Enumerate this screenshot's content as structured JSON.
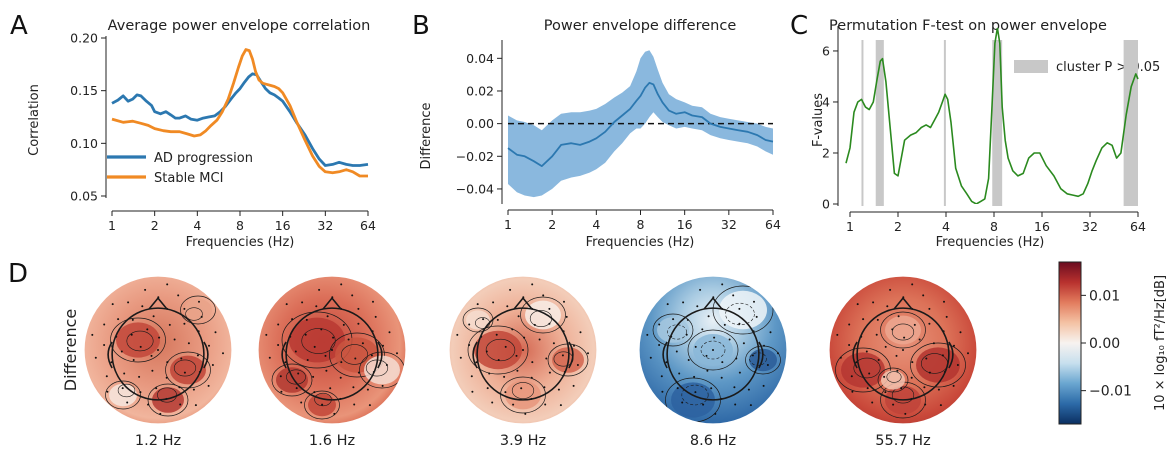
{
  "panels": {
    "A": "A",
    "B": "B",
    "C": "C",
    "D": "D"
  },
  "chart_data": [
    {
      "id": "A",
      "type": "line",
      "title": "Average power envelope correlation",
      "xlabel": "Frequencies (Hz)",
      "ylabel": "Correlation",
      "xscale": "log2",
      "xlim": [
        1,
        64
      ],
      "ylim": [
        0.05,
        0.2
      ],
      "xticks": [
        1,
        2,
        4,
        8,
        16,
        32,
        64
      ],
      "yticks": [
        0.05,
        0.1,
        0.15,
        0.2
      ],
      "ytick_labels": [
        "0.05",
        "0.10",
        "0.15",
        "0.20"
      ],
      "legend_position": "lower-left",
      "series": [
        {
          "name": "AD progression",
          "color": "#2c78b0",
          "x": [
            1,
            1.1,
            1.2,
            1.3,
            1.4,
            1.5,
            1.6,
            1.75,
            1.9,
            2.0,
            2.2,
            2.4,
            2.6,
            2.8,
            3.0,
            3.3,
            3.6,
            4.0,
            4.4,
            4.8,
            5.3,
            5.8,
            6.3,
            6.9,
            7.5,
            8.0,
            8.6,
            9.2,
            9.8,
            10.5,
            11.3,
            12.1,
            13.0,
            14.0,
            15.0,
            16.0,
            18,
            20,
            23,
            26,
            29,
            32,
            36,
            40,
            45,
            50,
            56,
            64
          ],
          "y": [
            0.138,
            0.141,
            0.145,
            0.14,
            0.142,
            0.146,
            0.145,
            0.14,
            0.136,
            0.13,
            0.128,
            0.13,
            0.127,
            0.124,
            0.124,
            0.126,
            0.123,
            0.122,
            0.124,
            0.125,
            0.126,
            0.13,
            0.135,
            0.142,
            0.148,
            0.152,
            0.158,
            0.163,
            0.166,
            0.165,
            0.158,
            0.152,
            0.148,
            0.146,
            0.143,
            0.14,
            0.13,
            0.12,
            0.108,
            0.095,
            0.085,
            0.079,
            0.08,
            0.082,
            0.08,
            0.079,
            0.079,
            0.08
          ]
        },
        {
          "name": "Stable MCI",
          "color": "#f08a24",
          "x": [
            1,
            1.2,
            1.4,
            1.6,
            1.8,
            2.0,
            2.3,
            2.6,
            3.0,
            3.4,
            3.8,
            4.2,
            4.6,
            5.0,
            5.5,
            6.0,
            6.6,
            7.2,
            7.8,
            8.3,
            8.8,
            9.3,
            9.8,
            10.3,
            10.9,
            11.6,
            12.3,
            13.1,
            14.0,
            15.0,
            16.0,
            18,
            20,
            23,
            26,
            29,
            32,
            36,
            40,
            45,
            50,
            56,
            64
          ],
          "y": [
            0.123,
            0.12,
            0.121,
            0.119,
            0.117,
            0.114,
            0.112,
            0.111,
            0.111,
            0.109,
            0.107,
            0.108,
            0.112,
            0.117,
            0.122,
            0.13,
            0.142,
            0.157,
            0.172,
            0.183,
            0.189,
            0.188,
            0.18,
            0.168,
            0.16,
            0.157,
            0.156,
            0.155,
            0.154,
            0.152,
            0.148,
            0.136,
            0.121,
            0.103,
            0.088,
            0.078,
            0.073,
            0.072,
            0.073,
            0.075,
            0.073,
            0.069,
            0.069
          ]
        }
      ]
    },
    {
      "id": "B",
      "type": "line",
      "title": "Power envelope difference",
      "xlabel": "Frequencies (Hz)",
      "ylabel": "Difference",
      "xscale": "log2",
      "xlim": [
        1,
        64
      ],
      "ylim": [
        -0.048,
        0.05
      ],
      "xticks": [
        1,
        2,
        4,
        8,
        16,
        32,
        64
      ],
      "yticks": [
        -0.04,
        -0.02,
        0.0,
        0.02,
        0.04
      ],
      "ytick_labels": [
        "−0.04",
        "−0.02",
        "0.00",
        "0.02",
        "0.04"
      ],
      "reference_line": 0,
      "series": [
        {
          "color": "#2c78b0",
          "band_color": "#8ab8de",
          "x": [
            1,
            1.15,
            1.3,
            1.5,
            1.7,
            2.0,
            2.3,
            2.7,
            3.1,
            3.6,
            4.0,
            4.6,
            5.3,
            6.0,
            6.8,
            7.5,
            8.0,
            8.6,
            9.2,
            9.8,
            10.5,
            11.3,
            12.5,
            14,
            16,
            18,
            21,
            24,
            28,
            32,
            37,
            43,
            50,
            57,
            64
          ],
          "y": [
            -0.015,
            -0.019,
            -0.02,
            -0.023,
            -0.026,
            -0.02,
            -0.013,
            -0.012,
            -0.013,
            -0.011,
            -0.009,
            -0.005,
            0.001,
            0.005,
            0.009,
            0.014,
            0.017,
            0.022,
            0.025,
            0.024,
            0.018,
            0.013,
            0.008,
            0.006,
            0.007,
            0.005,
            0.004,
            0.0,
            -0.002,
            -0.003,
            -0.004,
            -0.005,
            -0.007,
            -0.01,
            -0.011
          ],
          "upper": [
            0.005,
            0.002,
            0.001,
            -0.001,
            -0.004,
            0.002,
            0.006,
            0.007,
            0.007,
            0.008,
            0.009,
            0.012,
            0.016,
            0.019,
            0.023,
            0.032,
            0.04,
            0.044,
            0.045,
            0.041,
            0.033,
            0.025,
            0.018,
            0.015,
            0.013,
            0.011,
            0.01,
            0.006,
            0.004,
            0.003,
            0.002,
            0.001,
            0.0,
            -0.002,
            -0.003
          ],
          "lower": [
            -0.037,
            -0.042,
            -0.044,
            -0.045,
            -0.044,
            -0.04,
            -0.035,
            -0.033,
            -0.032,
            -0.03,
            -0.028,
            -0.024,
            -0.017,
            -0.012,
            -0.006,
            -0.003,
            -0.003,
            0.0,
            0.004,
            0.007,
            0.004,
            0.001,
            -0.001,
            -0.003,
            -0.002,
            -0.003,
            -0.004,
            -0.007,
            -0.009,
            -0.01,
            -0.011,
            -0.012,
            -0.014,
            -0.017,
            -0.019
          ]
        }
      ]
    },
    {
      "id": "C",
      "type": "line",
      "title": "Permutation F-test on power envelope",
      "xlabel": "Frequencies (Hz)",
      "ylabel": "F-values",
      "xscale": "log2",
      "xlim": [
        1,
        64
      ],
      "ylim": [
        0,
        6.9
      ],
      "xticks": [
        1,
        2,
        4,
        8,
        16,
        32,
        64
      ],
      "yticks": [
        0,
        2,
        4,
        6
      ],
      "ytick_labels": [
        "0",
        "2",
        "4",
        "6"
      ],
      "legend_position": "upper-right",
      "legend": [
        {
          "label": "cluster P > 0.05",
          "color": "#c8c8c8"
        }
      ],
      "clusters": [
        {
          "from": 1.18,
          "to": 1.2
        },
        {
          "from": 1.45,
          "to": 1.63
        },
        {
          "from": 3.88,
          "to": 3.96
        },
        {
          "from": 7.8,
          "to": 9.0
        },
        {
          "from": 52,
          "to": 64
        }
      ],
      "series": [
        {
          "color": "#2b8a1f",
          "x": [
            0.94,
            1.0,
            1.06,
            1.12,
            1.18,
            1.25,
            1.32,
            1.4,
            1.48,
            1.55,
            1.6,
            1.68,
            1.78,
            1.9,
            2.0,
            2.2,
            2.4,
            2.6,
            2.8,
            3.0,
            3.2,
            3.4,
            3.6,
            3.8,
            3.95,
            4.1,
            4.3,
            4.6,
            5.0,
            5.4,
            5.8,
            6.2,
            6.6,
            7.0,
            7.4,
            7.8,
            8.1,
            8.4,
            8.7,
            9.0,
            9.4,
            9.8,
            10.5,
            11.3,
            12.2,
            13.2,
            14.3,
            15.5,
            17,
            19,
            21,
            23,
            25,
            27,
            29,
            31,
            33,
            35,
            38,
            41,
            44,
            47,
            50,
            54,
            58,
            62,
            64
          ],
          "y": [
            1.6,
            2.2,
            3.6,
            4.0,
            4.1,
            3.8,
            3.7,
            4.0,
            4.9,
            5.6,
            5.7,
            4.8,
            3.1,
            1.2,
            1.1,
            2.5,
            2.7,
            2.8,
            3.0,
            3.1,
            3.0,
            3.3,
            3.6,
            4.0,
            4.3,
            4.1,
            3.2,
            1.4,
            0.7,
            0.4,
            0.1,
            0.0,
            0.1,
            0.2,
            1.0,
            4.0,
            6.3,
            6.9,
            6.3,
            3.8,
            2.5,
            1.8,
            1.3,
            1.1,
            1.2,
            1.8,
            2.0,
            2.0,
            1.5,
            1.1,
            0.6,
            0.4,
            0.35,
            0.3,
            0.4,
            0.8,
            1.3,
            1.7,
            2.2,
            2.4,
            2.3,
            1.8,
            2.0,
            3.5,
            4.6,
            5.1,
            4.9
          ]
        }
      ]
    }
  ],
  "topomaps": {
    "row_label": "Difference",
    "labels": [
      "1.2 Hz",
      "1.6 Hz",
      "3.9 Hz",
      "8.6 Hz",
      "55.7 Hz"
    ]
  },
  "colorbar": {
    "label": "10 × log₁₀ fT²/Hz[dB]",
    "range": [
      -0.017,
      0.017
    ],
    "ticks": [
      -0.01,
      0.0,
      0.01
    ],
    "tick_labels": [
      "−0.01",
      "0.00",
      "0.01"
    ],
    "colors": [
      "#0b2f61",
      "#2c6aa8",
      "#6aa6d0",
      "#c7dfee",
      "#f7f3f0",
      "#f4c2a4",
      "#e27c5e",
      "#b8312e",
      "#6b0c20"
    ]
  },
  "colors": {
    "axis": "#222222",
    "topo_line": "#1a1a1a"
  }
}
